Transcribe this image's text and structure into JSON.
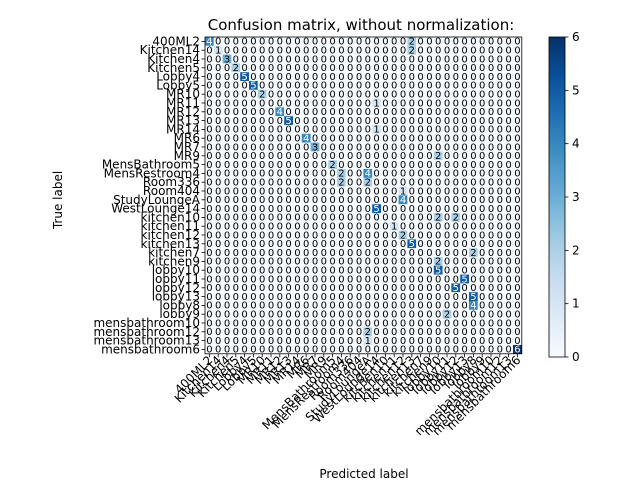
{
  "chart_data": {
    "type": "heatmap",
    "title": "Confusion matrix, without normalization:",
    "xlabel": "Predicted label",
    "ylabel": "True label",
    "labels": [
      "400ML2",
      "Kitchen14",
      "Kitchen4",
      "Kitchen5",
      "Lobby4",
      "Lobby5",
      "MR10",
      "MR11",
      "MR12",
      "MR13",
      "MR14",
      "MR6",
      "MR7",
      "MR9",
      "MensBathroom5",
      "MensRestroom4",
      "Room336",
      "Room404",
      "StudyLoungeA",
      "WestLounge14",
      "kitchen10",
      "kitchen11",
      "kitchen12",
      "kitchen13",
      "kitchen7",
      "kitchen9",
      "lobby10",
      "lobby11",
      "lobby12",
      "lobby13",
      "lobby8",
      "lobby9",
      "mensbathroom10",
      "mensbathroom12",
      "mensbathroom13",
      "mensbathroom6"
    ],
    "cells": [
      [
        0,
        0,
        4
      ],
      [
        0,
        23,
        2
      ],
      [
        1,
        1,
        1
      ],
      [
        1,
        23,
        2
      ],
      [
        2,
        2,
        3
      ],
      [
        3,
        3,
        2
      ],
      [
        4,
        4,
        5
      ],
      [
        5,
        5,
        5
      ],
      [
        6,
        6,
        2
      ],
      [
        7,
        19,
        1
      ],
      [
        8,
        8,
        4
      ],
      [
        9,
        9,
        5
      ],
      [
        10,
        19,
        1
      ],
      [
        11,
        11,
        4
      ],
      [
        12,
        12,
        3
      ],
      [
        13,
        26,
        2
      ],
      [
        14,
        14,
        2
      ],
      [
        15,
        15,
        2
      ],
      [
        15,
        18,
        4
      ],
      [
        16,
        15,
        2
      ],
      [
        16,
        18,
        2
      ],
      [
        17,
        22,
        1
      ],
      [
        18,
        22,
        4
      ],
      [
        19,
        19,
        5
      ],
      [
        20,
        26,
        2
      ],
      [
        20,
        28,
        2
      ],
      [
        21,
        21,
        1
      ],
      [
        22,
        22,
        2
      ],
      [
        23,
        23,
        5
      ],
      [
        24,
        30,
        2
      ],
      [
        25,
        26,
        2
      ],
      [
        26,
        26,
        5
      ],
      [
        27,
        29,
        5
      ],
      [
        28,
        28,
        5
      ],
      [
        29,
        30,
        5
      ],
      [
        30,
        30,
        4
      ],
      [
        31,
        19,
        0
      ],
      [
        31,
        27,
        2
      ],
      [
        32,
        18,
        0
      ],
      [
        33,
        18,
        2
      ],
      [
        34,
        18,
        1
      ],
      [
        35,
        35,
        6
      ]
    ],
    "colorbar": {
      "min": 0,
      "max": 6,
      "ticks": [
        0,
        1,
        2,
        3,
        4,
        5,
        6
      ]
    }
  }
}
